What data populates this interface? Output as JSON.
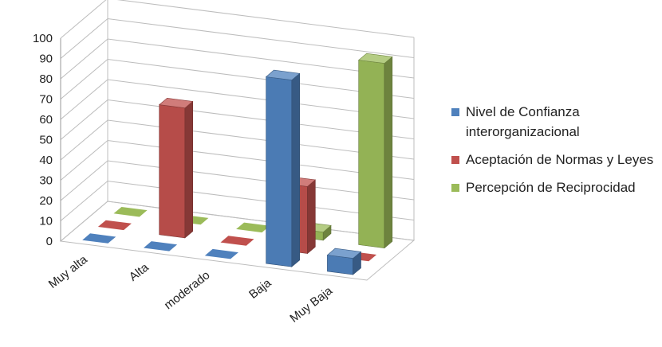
{
  "chart_data": {
    "type": "bar",
    "subtype": "3d-clustered-column",
    "title": "",
    "xlabel": "",
    "ylabel": "",
    "ylim": [
      0,
      100
    ],
    "yticks": [
      "0",
      "10",
      "20",
      "30",
      "40",
      "50",
      "60",
      "70",
      "80",
      "90",
      "100"
    ],
    "categories": [
      "Muy alta",
      "Alta",
      "moderado",
      "Baja",
      "Muy Baja"
    ],
    "series": [
      {
        "name": "Nivel de Confianza interorganizacional",
        "color": "#4F81BD",
        "values": [
          0,
          0,
          0,
          92,
          8
        ]
      },
      {
        "name": "Aceptación de Normas y Leyes",
        "color": "#C0504D",
        "values": [
          0,
          64,
          0,
          33,
          0
        ]
      },
      {
        "name": "Percepción de Reciprocidad",
        "color": "#9BBB59",
        "values": [
          0,
          0,
          0,
          4,
          91
        ]
      }
    ],
    "grid": true,
    "legend_position": "right"
  }
}
